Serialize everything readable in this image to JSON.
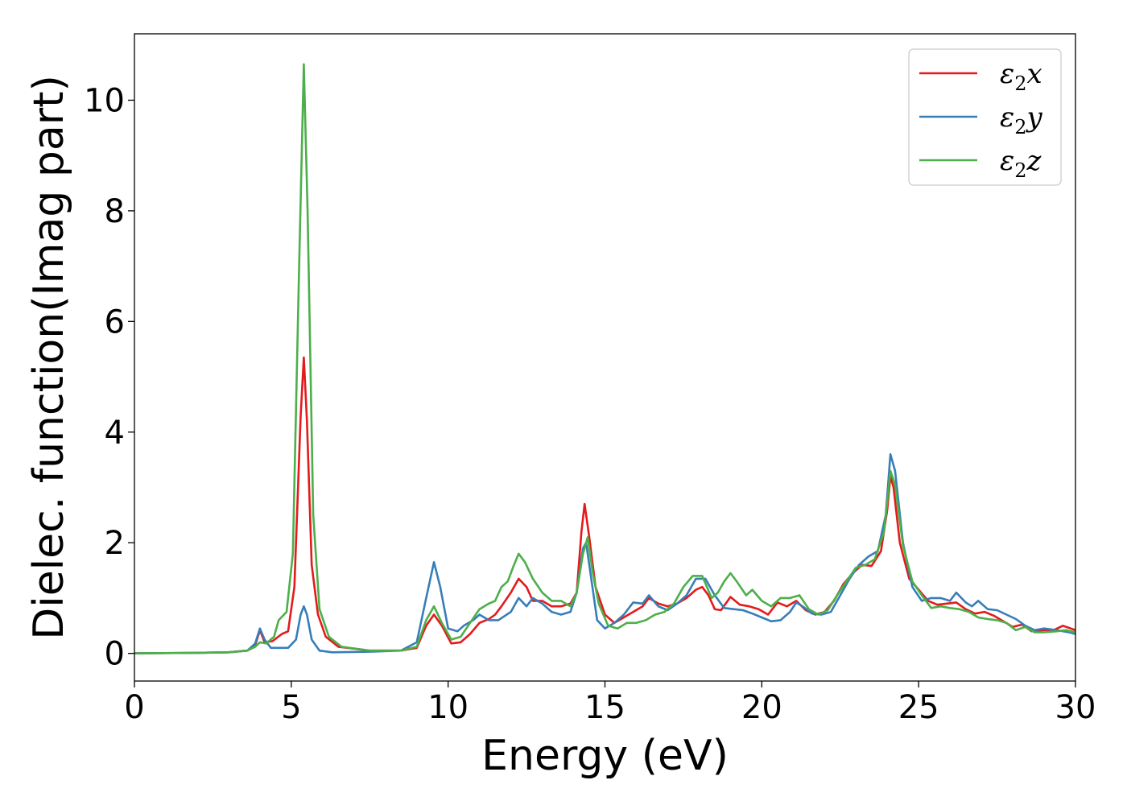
{
  "chart_data": {
    "type": "line",
    "title": "",
    "xlabel": "Energy (eV)",
    "ylabel": "Dielec. function(Imag part)",
    "xlim": [
      0,
      30
    ],
    "ylim": [
      -0.5,
      11.2
    ],
    "xticks": [
      0,
      5,
      10,
      15,
      20,
      25,
      30
    ],
    "yticks": [
      0,
      2,
      4,
      6,
      8,
      10
    ],
    "grid": false,
    "legend_position": "top-right",
    "series": [
      {
        "name": "ε2x",
        "legend_base": "ε",
        "legend_sub": "2",
        "legend_tail": "x",
        "color": "#e41a1c",
        "points": [
          [
            0,
            0
          ],
          [
            2,
            0.01
          ],
          [
            3,
            0.02
          ],
          [
            3.6,
            0.05
          ],
          [
            3.85,
            0.15
          ],
          [
            4.0,
            0.42
          ],
          [
            4.15,
            0.2
          ],
          [
            4.4,
            0.22
          ],
          [
            4.7,
            0.35
          ],
          [
            4.9,
            0.4
          ],
          [
            5.1,
            1.2
          ],
          [
            5.3,
            4.3
          ],
          [
            5.4,
            5.35
          ],
          [
            5.5,
            4.2
          ],
          [
            5.65,
            1.6
          ],
          [
            5.85,
            0.7
          ],
          [
            6.1,
            0.3
          ],
          [
            6.5,
            0.12
          ],
          [
            7.5,
            0.05
          ],
          [
            8.5,
            0.05
          ],
          [
            9.0,
            0.1
          ],
          [
            9.3,
            0.5
          ],
          [
            9.55,
            0.7
          ],
          [
            9.8,
            0.5
          ],
          [
            10.1,
            0.18
          ],
          [
            10.4,
            0.2
          ],
          [
            10.7,
            0.35
          ],
          [
            11.0,
            0.55
          ],
          [
            11.3,
            0.62
          ],
          [
            11.5,
            0.7
          ],
          [
            11.7,
            0.85
          ],
          [
            12.0,
            1.1
          ],
          [
            12.25,
            1.35
          ],
          [
            12.5,
            1.2
          ],
          [
            12.7,
            0.95
          ],
          [
            13.0,
            0.95
          ],
          [
            13.3,
            0.85
          ],
          [
            13.6,
            0.85
          ],
          [
            13.9,
            0.9
          ],
          [
            14.1,
            1.1
          ],
          [
            14.25,
            2.2
          ],
          [
            14.35,
            2.7
          ],
          [
            14.5,
            2.1
          ],
          [
            14.7,
            1.2
          ],
          [
            15.0,
            0.7
          ],
          [
            15.3,
            0.55
          ],
          [
            15.6,
            0.65
          ],
          [
            15.9,
            0.75
          ],
          [
            16.2,
            0.85
          ],
          [
            16.4,
            1.0
          ],
          [
            16.7,
            0.9
          ],
          [
            17.0,
            0.85
          ],
          [
            17.3,
            0.9
          ],
          [
            17.6,
            1.0
          ],
          [
            17.9,
            1.15
          ],
          [
            18.1,
            1.2
          ],
          [
            18.3,
            1.05
          ],
          [
            18.5,
            0.8
          ],
          [
            18.7,
            0.78
          ],
          [
            19.0,
            1.02
          ],
          [
            19.3,
            0.88
          ],
          [
            19.6,
            0.85
          ],
          [
            19.9,
            0.8
          ],
          [
            20.2,
            0.7
          ],
          [
            20.5,
            0.92
          ],
          [
            20.8,
            0.85
          ],
          [
            21.1,
            0.95
          ],
          [
            21.4,
            0.78
          ],
          [
            21.7,
            0.7
          ],
          [
            22.0,
            0.75
          ],
          [
            22.3,
            0.95
          ],
          [
            22.6,
            1.25
          ],
          [
            22.9,
            1.45
          ],
          [
            23.2,
            1.6
          ],
          [
            23.5,
            1.58
          ],
          [
            23.8,
            1.85
          ],
          [
            24.0,
            2.6
          ],
          [
            24.1,
            3.2
          ],
          [
            24.2,
            3.0
          ],
          [
            24.4,
            2.0
          ],
          [
            24.7,
            1.35
          ],
          [
            25.0,
            1.15
          ],
          [
            25.3,
            0.95
          ],
          [
            25.6,
            0.88
          ],
          [
            25.9,
            0.9
          ],
          [
            26.2,
            0.92
          ],
          [
            26.5,
            0.8
          ],
          [
            26.8,
            0.72
          ],
          [
            27.1,
            0.75
          ],
          [
            27.4,
            0.68
          ],
          [
            27.7,
            0.58
          ],
          [
            28.0,
            0.48
          ],
          [
            28.3,
            0.52
          ],
          [
            28.6,
            0.4
          ],
          [
            29.0,
            0.42
          ],
          [
            29.3,
            0.42
          ],
          [
            29.6,
            0.5
          ],
          [
            30,
            0.42
          ]
        ]
      },
      {
        "name": "ε2y",
        "legend_base": "ε",
        "legend_sub": "2",
        "legend_tail": "y",
        "color": "#377eb8",
        "points": [
          [
            0,
            0
          ],
          [
            2,
            0.01
          ],
          [
            3,
            0.02
          ],
          [
            3.6,
            0.05
          ],
          [
            3.85,
            0.18
          ],
          [
            4.0,
            0.45
          ],
          [
            4.15,
            0.25
          ],
          [
            4.35,
            0.1
          ],
          [
            4.6,
            0.1
          ],
          [
            4.9,
            0.1
          ],
          [
            5.15,
            0.25
          ],
          [
            5.3,
            0.7
          ],
          [
            5.4,
            0.85
          ],
          [
            5.5,
            0.7
          ],
          [
            5.65,
            0.25
          ],
          [
            5.9,
            0.05
          ],
          [
            6.3,
            0.02
          ],
          [
            7.5,
            0.03
          ],
          [
            8.5,
            0.05
          ],
          [
            9.0,
            0.2
          ],
          [
            9.3,
            1.0
          ],
          [
            9.55,
            1.65
          ],
          [
            9.75,
            1.2
          ],
          [
            10.0,
            0.45
          ],
          [
            10.3,
            0.4
          ],
          [
            10.5,
            0.5
          ],
          [
            10.8,
            0.6
          ],
          [
            11.0,
            0.7
          ],
          [
            11.3,
            0.6
          ],
          [
            11.6,
            0.6
          ],
          [
            12.0,
            0.75
          ],
          [
            12.25,
            1.0
          ],
          [
            12.5,
            0.85
          ],
          [
            12.7,
            1.0
          ],
          [
            13.0,
            0.9
          ],
          [
            13.3,
            0.75
          ],
          [
            13.6,
            0.7
          ],
          [
            13.9,
            0.75
          ],
          [
            14.1,
            1.1
          ],
          [
            14.3,
            1.9
          ],
          [
            14.4,
            2.0
          ],
          [
            14.55,
            1.4
          ],
          [
            14.75,
            0.6
          ],
          [
            15.0,
            0.45
          ],
          [
            15.3,
            0.55
          ],
          [
            15.6,
            0.7
          ],
          [
            15.9,
            0.92
          ],
          [
            16.2,
            0.9
          ],
          [
            16.4,
            1.05
          ],
          [
            16.7,
            0.85
          ],
          [
            17.0,
            0.78
          ],
          [
            17.3,
            0.9
          ],
          [
            17.6,
            1.05
          ],
          [
            17.9,
            1.35
          ],
          [
            18.2,
            1.35
          ],
          [
            18.5,
            1.05
          ],
          [
            18.8,
            0.82
          ],
          [
            19.1,
            0.8
          ],
          [
            19.4,
            0.78
          ],
          [
            19.7,
            0.72
          ],
          [
            20.0,
            0.65
          ],
          [
            20.3,
            0.58
          ],
          [
            20.6,
            0.6
          ],
          [
            20.9,
            0.75
          ],
          [
            21.1,
            0.92
          ],
          [
            21.3,
            0.85
          ],
          [
            21.6,
            0.72
          ],
          [
            21.9,
            0.7
          ],
          [
            22.2,
            0.75
          ],
          [
            22.5,
            1.05
          ],
          [
            22.8,
            1.35
          ],
          [
            23.1,
            1.6
          ],
          [
            23.4,
            1.75
          ],
          [
            23.7,
            1.85
          ],
          [
            23.95,
            2.5
          ],
          [
            24.1,
            3.6
          ],
          [
            24.25,
            3.3
          ],
          [
            24.5,
            2.0
          ],
          [
            24.8,
            1.2
          ],
          [
            25.1,
            0.95
          ],
          [
            25.4,
            1.0
          ],
          [
            25.7,
            1.0
          ],
          [
            26.0,
            0.95
          ],
          [
            26.2,
            1.1
          ],
          [
            26.5,
            0.92
          ],
          [
            26.7,
            0.85
          ],
          [
            26.9,
            0.95
          ],
          [
            27.2,
            0.8
          ],
          [
            27.5,
            0.78
          ],
          [
            27.8,
            0.7
          ],
          [
            28.1,
            0.62
          ],
          [
            28.4,
            0.5
          ],
          [
            28.7,
            0.42
          ],
          [
            29.0,
            0.45
          ],
          [
            29.4,
            0.42
          ],
          [
            29.8,
            0.38
          ],
          [
            30,
            0.35
          ]
        ]
      },
      {
        "name": "ε2z",
        "legend_base": "ε",
        "legend_sub": "2",
        "legend_tail": "z",
        "color": "#4daf4a",
        "points": [
          [
            0,
            0
          ],
          [
            2,
            0.01
          ],
          [
            3,
            0.02
          ],
          [
            3.6,
            0.05
          ],
          [
            3.85,
            0.12
          ],
          [
            4.0,
            0.2
          ],
          [
            4.2,
            0.18
          ],
          [
            4.45,
            0.3
          ],
          [
            4.6,
            0.6
          ],
          [
            4.85,
            0.75
          ],
          [
            5.05,
            1.8
          ],
          [
            5.25,
            7.0
          ],
          [
            5.4,
            10.65
          ],
          [
            5.52,
            8.0
          ],
          [
            5.7,
            2.5
          ],
          [
            5.9,
            0.8
          ],
          [
            6.2,
            0.3
          ],
          [
            6.6,
            0.12
          ],
          [
            7.5,
            0.05
          ],
          [
            8.5,
            0.05
          ],
          [
            9.0,
            0.12
          ],
          [
            9.3,
            0.6
          ],
          [
            9.55,
            0.85
          ],
          [
            9.8,
            0.55
          ],
          [
            10.1,
            0.25
          ],
          [
            10.4,
            0.3
          ],
          [
            10.7,
            0.55
          ],
          [
            11.0,
            0.8
          ],
          [
            11.3,
            0.9
          ],
          [
            11.5,
            0.95
          ],
          [
            11.7,
            1.2
          ],
          [
            11.9,
            1.3
          ],
          [
            12.1,
            1.6
          ],
          [
            12.25,
            1.8
          ],
          [
            12.45,
            1.65
          ],
          [
            12.7,
            1.35
          ],
          [
            13.0,
            1.1
          ],
          [
            13.3,
            0.95
          ],
          [
            13.6,
            0.95
          ],
          [
            13.9,
            0.85
          ],
          [
            14.1,
            1.1
          ],
          [
            14.3,
            1.8
          ],
          [
            14.45,
            2.1
          ],
          [
            14.6,
            1.5
          ],
          [
            14.8,
            0.9
          ],
          [
            15.1,
            0.5
          ],
          [
            15.4,
            0.45
          ],
          [
            15.7,
            0.55
          ],
          [
            16.0,
            0.55
          ],
          [
            16.3,
            0.6
          ],
          [
            16.6,
            0.7
          ],
          [
            16.9,
            0.75
          ],
          [
            17.2,
            0.9
          ],
          [
            17.5,
            1.2
          ],
          [
            17.8,
            1.4
          ],
          [
            18.1,
            1.4
          ],
          [
            18.4,
            1.0
          ],
          [
            18.6,
            1.1
          ],
          [
            18.8,
            1.3
          ],
          [
            19.0,
            1.45
          ],
          [
            19.2,
            1.3
          ],
          [
            19.5,
            1.05
          ],
          [
            19.7,
            1.15
          ],
          [
            20.0,
            0.95
          ],
          [
            20.3,
            0.85
          ],
          [
            20.6,
            1.0
          ],
          [
            20.9,
            1.0
          ],
          [
            21.2,
            1.05
          ],
          [
            21.5,
            0.8
          ],
          [
            21.8,
            0.7
          ],
          [
            22.1,
            0.78
          ],
          [
            22.4,
            1.05
          ],
          [
            22.7,
            1.3
          ],
          [
            23.0,
            1.55
          ],
          [
            23.3,
            1.6
          ],
          [
            23.6,
            1.7
          ],
          [
            23.9,
            2.2
          ],
          [
            24.1,
            3.3
          ],
          [
            24.25,
            3.05
          ],
          [
            24.5,
            1.95
          ],
          [
            24.8,
            1.3
          ],
          [
            25.1,
            1.05
          ],
          [
            25.4,
            0.82
          ],
          [
            25.7,
            0.85
          ],
          [
            26.0,
            0.82
          ],
          [
            26.3,
            0.8
          ],
          [
            26.6,
            0.75
          ],
          [
            26.9,
            0.65
          ],
          [
            27.2,
            0.62
          ],
          [
            27.5,
            0.6
          ],
          [
            27.8,
            0.55
          ],
          [
            28.1,
            0.42
          ],
          [
            28.4,
            0.48
          ],
          [
            28.7,
            0.38
          ],
          [
            29.0,
            0.38
          ],
          [
            29.4,
            0.4
          ],
          [
            29.7,
            0.42
          ],
          [
            30,
            0.38
          ]
        ]
      }
    ]
  }
}
